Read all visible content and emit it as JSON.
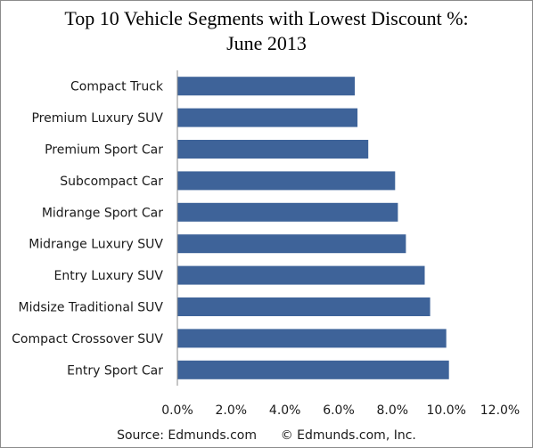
{
  "chart_data": {
    "type": "bar",
    "orientation": "horizontal",
    "title_line1": "Top 10 Vehicle Segments with Lowest Discount %:",
    "title_line2": "June 2013",
    "categories": [
      "Compact Truck",
      "Premium Luxury SUV",
      "Premium Sport Car",
      "Subcompact Car",
      "Midrange Sport Car",
      "Midrange Luxury SUV",
      "Entry Luxury SUV",
      "Midsize Traditional SUV",
      "Compact Crossover SUV",
      "Entry Sport Car"
    ],
    "values": [
      6.6,
      6.7,
      7.1,
      8.1,
      8.2,
      8.5,
      9.2,
      9.4,
      10.0,
      10.1
    ],
    "unit": "%",
    "xlim": [
      0,
      12
    ],
    "ticks": [
      "0.0%",
      "2.0%",
      "4.0%",
      "6.0%",
      "8.0%",
      "10.0%",
      "12.0%"
    ],
    "tick_values": [
      0,
      2,
      4,
      6,
      8,
      10,
      12
    ],
    "bar_color": "#3e6399",
    "grid": false,
    "legend": "none",
    "source_left": "Source: Edmunds.com",
    "source_right": "© Edmunds.com, Inc."
  }
}
